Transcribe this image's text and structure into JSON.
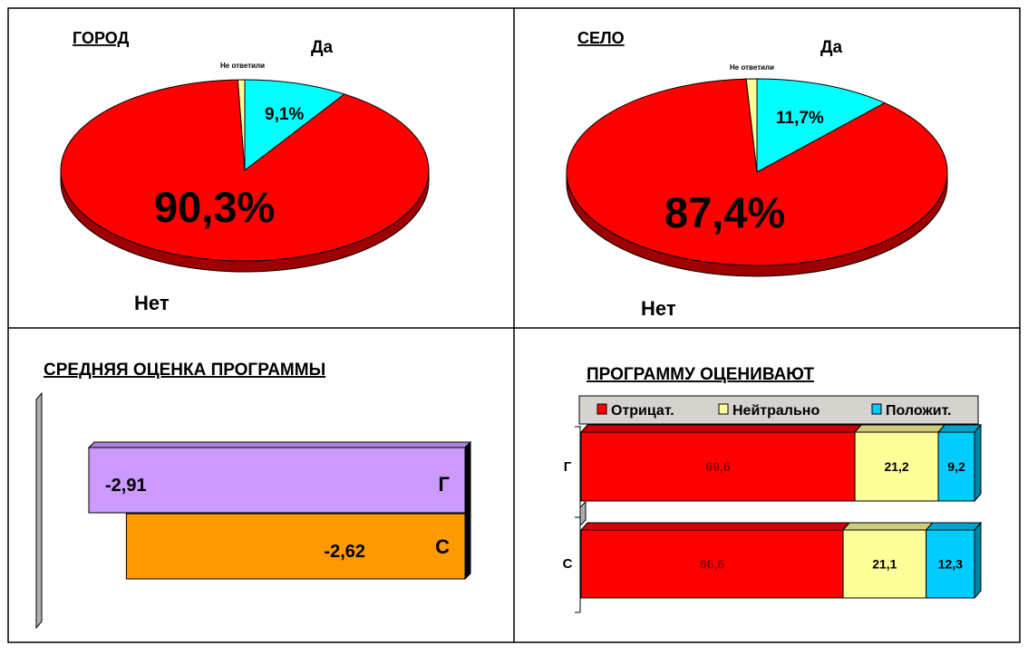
{
  "chart_data": [
    {
      "type": "pie",
      "title": "ГОРОД",
      "slices": [
        {
          "label": "Да",
          "value": 9.1,
          "display": "9,1%",
          "color": "#00ffff"
        },
        {
          "label": "Нет",
          "value": 90.3,
          "display": "90,3%",
          "color": "#ff0000"
        },
        {
          "label": "Не ответили",
          "value": 0.6,
          "display": "",
          "color": "#ffff99"
        }
      ]
    },
    {
      "type": "pie",
      "title": "СЕЛО",
      "slices": [
        {
          "label": "Да",
          "value": 11.7,
          "display": "11,7%",
          "color": "#00ffff"
        },
        {
          "label": "Нет",
          "value": 87.4,
          "display": "87,4%",
          "color": "#ff0000"
        },
        {
          "label": "Не ответили",
          "value": 0.9,
          "display": "",
          "color": "#ffff99"
        }
      ]
    },
    {
      "type": "bar",
      "orientation": "horizontal",
      "title": "СРЕДНЯЯ ОЦЕНКА ПРОГРАММЫ",
      "categories": [
        "Г",
        "С"
      ],
      "values": [
        -2.91,
        -2.62
      ],
      "value_labels": [
        "-2,91",
        "-2,62"
      ],
      "colors": [
        "#cc99ff",
        "#ff9900"
      ],
      "xlim": [
        -3.76,
        0
      ]
    },
    {
      "type": "bar",
      "orientation": "horizontal",
      "stacked": true,
      "title": "ПРОГРАММУ ОЦЕНИВАЮТ",
      "categories": [
        "Г",
        "С"
      ],
      "series": [
        {
          "name": "Отрицат.",
          "values": [
            69.6,
            66.6
          ],
          "labels": [
            "69,6",
            "66,6"
          ],
          "color": "#ff0000"
        },
        {
          "name": "Нейтрально",
          "values": [
            21.2,
            21.1
          ],
          "labels": [
            "21,2",
            "21,1"
          ],
          "color": "#ffff99"
        },
        {
          "name": "Положит.",
          "values": [
            9.2,
            12.3
          ],
          "labels": [
            "9,2",
            "12,3"
          ],
          "color": "#00ccff"
        }
      ],
      "legend": "top"
    }
  ]
}
